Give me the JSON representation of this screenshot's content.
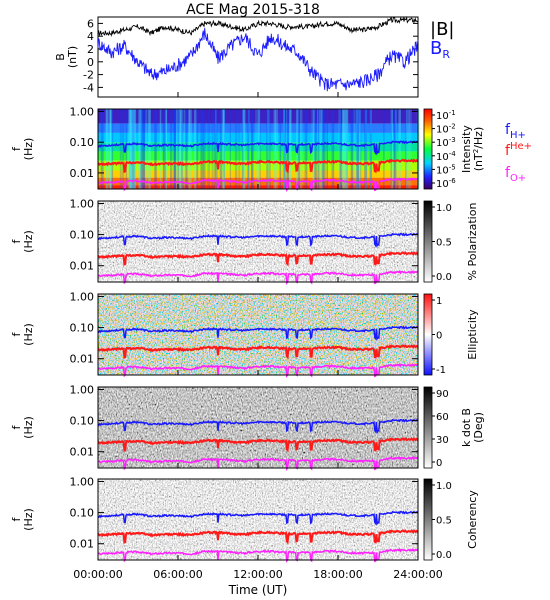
{
  "title": "ACE Mag 2015-318",
  "xlabel": "Time (UT)",
  "x_ticks": [
    "00:00:00",
    "06:00:00",
    "12:00:00",
    "18:00:00",
    "24:00:00"
  ],
  "colors": {
    "b_total": "#000000",
    "b_r": "#1a1aff",
    "f_h": "#1a1aff",
    "f_he": "#ff1a1a",
    "f_o": "#ff22ff"
  },
  "chart_data": [
    {
      "type": "line",
      "panel": "magnetic-field",
      "ylabel": [
        "B",
        "(nT)"
      ],
      "y_ticks": [
        "6",
        "4",
        "2",
        "0",
        "-2",
        "-4"
      ],
      "ylim": [
        -5.5,
        7
      ],
      "x_hours": [
        0,
        1,
        2,
        3,
        4,
        5,
        6,
        7,
        8,
        9,
        10,
        11,
        12,
        13,
        14,
        15,
        16,
        17,
        18,
        19,
        20,
        21,
        22,
        23,
        24
      ],
      "series": [
        {
          "name": "|B|",
          "values": [
            4.5,
            4.5,
            5.0,
            5.5,
            4.5,
            5.5,
            5.0,
            4.5,
            6.0,
            6.0,
            5.5,
            5.0,
            6.0,
            6.0,
            5.5,
            5.5,
            5.5,
            6.0,
            6.0,
            5.0,
            5.0,
            5.5,
            6.5,
            6.5,
            6.5
          ]
        },
        {
          "name": "B",
          "sub": "R",
          "values": [
            3.0,
            1.5,
            2.5,
            0.0,
            -2.0,
            -1.5,
            -0.5,
            1.0,
            4.5,
            0.5,
            2.5,
            4.0,
            1.0,
            4.0,
            2.5,
            1.5,
            -1.5,
            -3.5,
            -3.5,
            -3.5,
            -3.0,
            -2.0,
            1.0,
            0.0,
            2.5
          ]
        }
      ]
    },
    {
      "type": "heatmap",
      "panel": "intensity",
      "ylabel": [
        "f",
        "(Hz)"
      ],
      "y_ticks": [
        "1.00",
        "0.10",
        "0.01"
      ],
      "ylim": [
        0.003,
        1.2
      ],
      "colorbar": {
        "label": [
          "Intensity",
          "(nT",
          "2",
          "/Hz)"
        ],
        "ticks": [
          {
            "base": "10",
            "exp": "-1"
          },
          {
            "base": "10",
            "exp": "-2"
          },
          {
            "base": "10",
            "exp": "-3"
          },
          {
            "base": "10",
            "exp": "-4"
          },
          {
            "base": "10",
            "exp": "-5"
          },
          {
            "base": "10",
            "exp": "-6"
          }
        ]
      },
      "legend": [
        {
          "base": "f",
          "sub": "H+"
        },
        {
          "base": "f",
          "sup": "He+"
        },
        {
          "base": "f",
          "sub": "O+"
        }
      ]
    },
    {
      "type": "heatmap",
      "panel": "polarization",
      "ylabel": [
        "f",
        "(Hz)"
      ],
      "y_ticks": [
        "1.00",
        "0.10",
        "0.01"
      ],
      "colorbar": {
        "label": "% Polarization",
        "ticks": [
          "1.0",
          "0.5",
          "0.0"
        ]
      }
    },
    {
      "type": "heatmap",
      "panel": "ellipticity",
      "ylabel": [
        "f",
        "(Hz)"
      ],
      "y_ticks": [
        "1.00",
        "0.10",
        "0.01"
      ],
      "colorbar": {
        "label": "Ellipticity",
        "ticks": [
          "1",
          "0",
          "-1"
        ]
      }
    },
    {
      "type": "heatmap",
      "panel": "k-dot-b",
      "ylabel": [
        "f",
        "(Hz)"
      ],
      "y_ticks": [
        "1.00",
        "0.10",
        "0.01"
      ],
      "colorbar": {
        "label": [
          "k dot B",
          "(Deg)"
        ],
        "ticks": [
          "90",
          "60",
          "30",
          "0"
        ]
      }
    },
    {
      "type": "heatmap",
      "panel": "coherency",
      "ylabel": [
        "f",
        "(Hz)"
      ],
      "y_ticks": [
        "1.00",
        "0.10",
        "0.01"
      ],
      "colorbar": {
        "label": "Coherency",
        "ticks": [
          "1.0",
          "0.5",
          "0.0"
        ]
      }
    }
  ],
  "gyrofrequencies": {
    "x_hours": [
      0,
      1,
      2,
      3,
      4,
      5,
      6,
      7,
      8,
      9,
      10,
      11,
      12,
      13,
      14,
      15,
      16,
      17,
      18,
      19,
      20,
      21,
      22,
      23,
      24
    ],
    "f_h": [
      0.075,
      0.08,
      0.085,
      0.09,
      0.075,
      0.08,
      0.08,
      0.075,
      0.09,
      0.09,
      0.085,
      0.08,
      0.09,
      0.09,
      0.085,
      0.085,
      0.085,
      0.09,
      0.09,
      0.08,
      0.08,
      0.085,
      0.1,
      0.1,
      0.1
    ],
    "f_he": [
      0.019,
      0.02,
      0.021,
      0.022,
      0.019,
      0.02,
      0.02,
      0.019,
      0.023,
      0.023,
      0.021,
      0.02,
      0.023,
      0.023,
      0.021,
      0.021,
      0.021,
      0.023,
      0.023,
      0.02,
      0.02,
      0.021,
      0.025,
      0.025,
      0.025
    ],
    "f_o": [
      0.0047,
      0.005,
      0.0053,
      0.0055,
      0.0047,
      0.005,
      0.005,
      0.0047,
      0.0057,
      0.0057,
      0.0053,
      0.005,
      0.0057,
      0.0057,
      0.0053,
      0.0053,
      0.0053,
      0.0057,
      0.0057,
      0.005,
      0.005,
      0.0053,
      0.0062,
      0.0062,
      0.0062
    ]
  }
}
